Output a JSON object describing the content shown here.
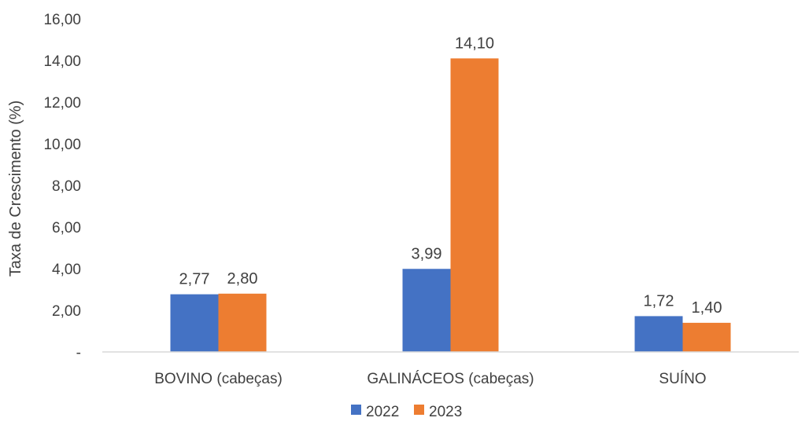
{
  "chart_data": {
    "type": "bar",
    "title": "",
    "xlabel": "",
    "ylabel": "Taxa de Crescimento (%)",
    "ylim": [
      0,
      16
    ],
    "yticks": [
      0,
      2,
      4,
      6,
      8,
      10,
      12,
      14,
      16
    ],
    "ytick_labels": [
      "-",
      "2,00",
      "4,00",
      "6,00",
      "8,00",
      "10,00",
      "12,00",
      "14,00",
      "16,00"
    ],
    "categories": [
      "BOVINO (cabeças)",
      "GALINÁCEOS (cabeças)",
      "SUÍNO"
    ],
    "series": [
      {
        "name": "2022",
        "color": "#4472C4",
        "values": [
          2.77,
          3.99,
          1.72
        ],
        "labels": [
          "2,77",
          "3,99",
          "1,72"
        ]
      },
      {
        "name": "2023",
        "color": "#ED7D31",
        "values": [
          2.8,
          14.1,
          1.4
        ],
        "labels": [
          "2,80",
          "14,10",
          "1,40"
        ]
      }
    ],
    "grid": false,
    "legend_position": "bottom"
  }
}
